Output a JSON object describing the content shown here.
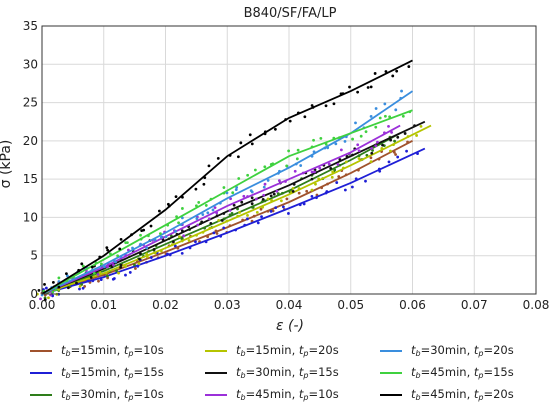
{
  "chart_data": {
    "type": "scatter",
    "title": "B840/SF/FA/LP",
    "xlabel": "ε (-)",
    "ylabel": "σ (kPa)",
    "xlim": [
      0.0,
      0.08
    ],
    "ylim": [
      0,
      35
    ],
    "xticks": [
      "0.00",
      "0.01",
      "0.02",
      "0.03",
      "0.04",
      "0.05",
      "0.06",
      "0.07",
      "0.08"
    ],
    "yticks": [
      "0",
      "5",
      "10",
      "15",
      "20",
      "25",
      "30",
      "35"
    ],
    "grid": true,
    "legend_placement": "below",
    "series": [
      {
        "name": "t_b=15min, t_p=10s",
        "color": "#a0522d",
        "x": [
          0,
          0.01,
          0.02,
          0.03,
          0.04,
          0.05,
          0.06
        ],
        "y": [
          0,
          2.5,
          5.5,
          8.7,
          12,
          15.8,
          20
        ]
      },
      {
        "name": "t_b=15min, t_p=15s",
        "color": "#1f1fd6",
        "x": [
          0,
          0.01,
          0.02,
          0.03,
          0.04,
          0.05,
          0.062
        ],
        "y": [
          0,
          2.2,
          5,
          8,
          11.2,
          14.5,
          19
        ]
      },
      {
        "name": "t_b=30min, t_p=10s",
        "color": "#2e7d1a",
        "x": [
          0,
          0.01,
          0.02,
          0.03,
          0.04,
          0.05,
          0.058
        ],
        "y": [
          0,
          3,
          6.5,
          10,
          13.5,
          17.5,
          21
        ]
      },
      {
        "name": "t_b=15min, t_p=20s",
        "color": "#b5c400",
        "x": [
          0,
          0.01,
          0.02,
          0.03,
          0.04,
          0.05,
          0.063
        ],
        "y": [
          0,
          2.7,
          6,
          9.5,
          13,
          16.8,
          22
        ]
      },
      {
        "name": "t_b=30min, t_p=15s",
        "color": "#111111",
        "x": [
          0,
          0.01,
          0.02,
          0.03,
          0.04,
          0.05,
          0.062
        ],
        "y": [
          0,
          3.3,
          7,
          10.8,
          14.2,
          18,
          22.5
        ]
      },
      {
        "name": "t_b=45min, t_p=10s",
        "color": "#9b30d9",
        "x": [
          0,
          0.01,
          0.02,
          0.03,
          0.04,
          0.05,
          0.058
        ],
        "y": [
          0,
          3.5,
          7.5,
          11.5,
          15,
          18.5,
          22
        ]
      },
      {
        "name": "t_b=30min, t_p=20s",
        "color": "#3a8ede",
        "x": [
          0,
          0.01,
          0.02,
          0.03,
          0.04,
          0.05,
          0.06
        ],
        "y": [
          0,
          3.8,
          8,
          12.5,
          16.5,
          21,
          26.5
        ]
      },
      {
        "name": "t_b=45min, t_p=15s",
        "color": "#3fd13f",
        "x": [
          0,
          0.01,
          0.02,
          0.03,
          0.04,
          0.05,
          0.06
        ],
        "y": [
          0,
          4.5,
          9,
          13.5,
          18,
          21,
          24
        ]
      },
      {
        "name": "t_b=45min, t_p=20s",
        "color": "#000000",
        "x": [
          0,
          0.01,
          0.02,
          0.03,
          0.04,
          0.05,
          0.06
        ],
        "y": [
          0,
          5,
          11,
          18,
          23,
          26.5,
          30.5
        ]
      }
    ]
  },
  "legend": {
    "items": [
      {
        "b": "15min",
        "p": "10s",
        "color": "#a0522d"
      },
      {
        "b": "15min",
        "p": "20s",
        "color": "#b5c400"
      },
      {
        "b": "30min",
        "p": "20s",
        "color": "#3a8ede"
      },
      {
        "b": "15min",
        "p": "15s",
        "color": "#1f1fd6"
      },
      {
        "b": "30min",
        "p": "15s",
        "color": "#111111"
      },
      {
        "b": "45min",
        "p": "15s",
        "color": "#3fd13f"
      },
      {
        "b": "30min",
        "p": "10s",
        "color": "#2e7d1a"
      },
      {
        "b": "45min",
        "p": "10s",
        "color": "#9b30d9"
      },
      {
        "b": "45min",
        "p": "20s",
        "color": "#000000"
      }
    ]
  }
}
